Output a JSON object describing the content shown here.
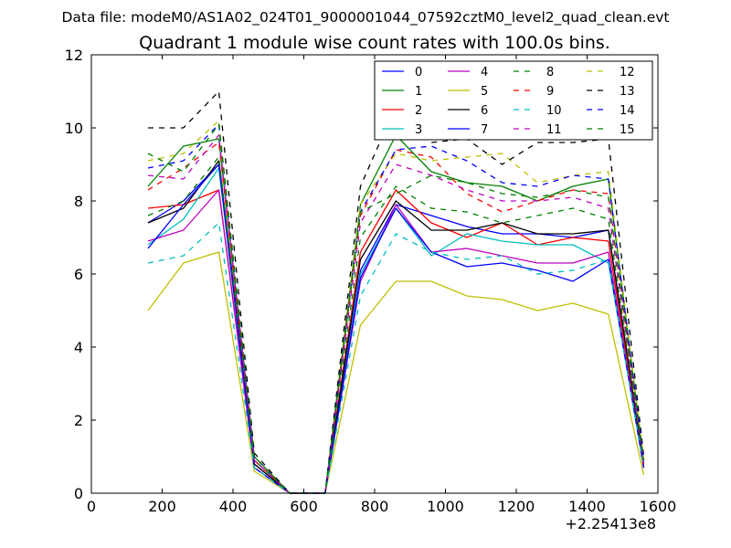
{
  "chart_data": {
    "type": "line",
    "suptitle": "Data file: modeM0/AS1A02_024T01_9000001044_07592cztM0_level2_quad_clean.evt",
    "title": "Quadrant 1 module wise count rates with 100.0s bins.",
    "xlabel": "",
    "ylabel": "",
    "x_offset_label": "+2.25413e8",
    "xlim": [
      0,
      1600
    ],
    "ylim": [
      0,
      12
    ],
    "xticks": [
      0,
      200,
      400,
      600,
      800,
      1000,
      1200,
      1400,
      1600
    ],
    "yticks": [
      0,
      2,
      4,
      6,
      8,
      10,
      12
    ],
    "legend_position": "upper-right",
    "x": [
      160,
      260,
      360,
      460,
      560,
      660,
      760,
      860,
      960,
      1060,
      1160,
      1260,
      1360,
      1460,
      1560
    ],
    "series": [
      {
        "name": "0",
        "color": "#0000ff",
        "style": "solid",
        "values": [
          7.4,
          8.0,
          9.0,
          0.9,
          0,
          0,
          6.1,
          7.9,
          7.6,
          7.3,
          7.1,
          7.1,
          7.0,
          7.2,
          0.7
        ]
      },
      {
        "name": "1",
        "color": "#008000",
        "style": "solid",
        "values": [
          8.4,
          9.5,
          9.7,
          1.0,
          0,
          0,
          7.9,
          9.8,
          8.8,
          8.5,
          8.4,
          8.0,
          8.4,
          8.6,
          0.9
        ]
      },
      {
        "name": "2",
        "color": "#ff0000",
        "style": "solid",
        "values": [
          7.8,
          7.9,
          8.3,
          0.8,
          0,
          0,
          6.6,
          8.3,
          7.4,
          7.0,
          7.4,
          6.8,
          7.0,
          6.9,
          0.7
        ]
      },
      {
        "name": "3",
        "color": "#00bfbf",
        "style": "solid",
        "values": [
          6.8,
          7.5,
          8.9,
          0.7,
          0,
          0,
          6.0,
          7.8,
          6.5,
          7.1,
          6.9,
          6.8,
          6.8,
          6.3,
          0.8
        ]
      },
      {
        "name": "4",
        "color": "#bf00bf",
        "style": "solid",
        "values": [
          6.9,
          7.2,
          8.3,
          0.7,
          0,
          0,
          5.8,
          7.9,
          6.6,
          6.7,
          6.5,
          6.3,
          6.3,
          6.6,
          0.7
        ]
      },
      {
        "name": "5",
        "color": "#bfbf00",
        "style": "solid",
        "values": [
          5.0,
          6.3,
          6.6,
          0.6,
          0,
          0,
          4.6,
          5.8,
          5.8,
          5.4,
          5.3,
          5.0,
          5.2,
          4.9,
          0.5
        ]
      },
      {
        "name": "6",
        "color": "#000000",
        "style": "solid",
        "values": [
          7.4,
          7.8,
          9.1,
          0.8,
          0,
          0,
          6.4,
          8.0,
          7.2,
          7.2,
          7.4,
          7.1,
          7.1,
          7.2,
          0.8
        ]
      },
      {
        "name": "7",
        "color": "#0000ff",
        "style": "solid",
        "values": [
          6.7,
          7.9,
          9.0,
          0.7,
          0,
          0,
          5.9,
          7.8,
          6.6,
          6.2,
          6.3,
          6.1,
          5.8,
          6.4,
          0.7
        ]
      },
      {
        "name": "8",
        "color": "#008000",
        "style": "dashed",
        "values": [
          7.6,
          8.0,
          9.2,
          0.9,
          0,
          0,
          7.0,
          8.4,
          7.8,
          7.7,
          7.4,
          7.6,
          7.8,
          7.5,
          0.8
        ]
      },
      {
        "name": "9",
        "color": "#ff0000",
        "style": "dashed",
        "values": [
          8.3,
          8.9,
          9.6,
          0.9,
          0,
          0,
          7.6,
          9.4,
          9.2,
          8.2,
          7.7,
          8.0,
          8.3,
          8.2,
          0.8
        ]
      },
      {
        "name": "10",
        "color": "#00bfbf",
        "style": "dashed",
        "values": [
          6.3,
          6.5,
          7.4,
          0.7,
          0,
          0,
          5.4,
          7.1,
          6.6,
          6.4,
          6.5,
          6.0,
          6.1,
          6.4,
          0.7
        ]
      },
      {
        "name": "11",
        "color": "#bf00bf",
        "style": "dashed",
        "values": [
          8.7,
          8.6,
          9.8,
          0.9,
          0,
          0,
          7.4,
          9.0,
          8.7,
          8.3,
          8.0,
          8.0,
          8.1,
          7.8,
          0.8
        ]
      },
      {
        "name": "12",
        "color": "#bfbf00",
        "style": "dashed",
        "values": [
          9.1,
          9.3,
          10.2,
          1.0,
          0,
          0,
          7.9,
          9.3,
          9.1,
          9.2,
          9.3,
          8.5,
          8.7,
          8.8,
          0.9
        ]
      },
      {
        "name": "13",
        "color": "#000000",
        "style": "dashed",
        "values": [
          10.0,
          10.0,
          11.0,
          1.1,
          0,
          0,
          8.4,
          10.6,
          9.6,
          9.7,
          9.0,
          9.6,
          9.6,
          9.7,
          1.0
        ]
      },
      {
        "name": "14",
        "color": "#0000ff",
        "style": "dashed",
        "values": [
          8.9,
          9.1,
          10.1,
          1.0,
          0,
          0,
          7.7,
          9.4,
          9.5,
          9.1,
          8.5,
          8.4,
          8.7,
          8.6,
          0.9
        ]
      },
      {
        "name": "15",
        "color": "#008000",
        "style": "dashed",
        "values": [
          9.3,
          8.8,
          10.1,
          1.0,
          0,
          0,
          7.7,
          8.2,
          8.7,
          8.5,
          8.2,
          8.1,
          8.3,
          8.1,
          0.9
        ]
      }
    ]
  }
}
